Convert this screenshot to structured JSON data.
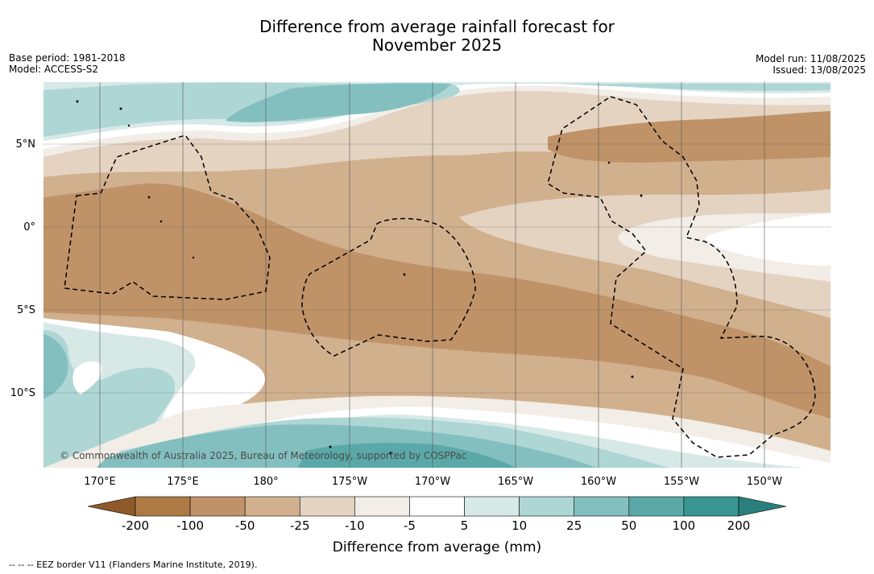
{
  "title_line1": "Difference from average rainfall forecast for",
  "title_line2": "November 2025",
  "base_period": "Base period: 1981-2018",
  "model": "Model: ACCESS-S2",
  "model_run": "Model run: 11/08/2025",
  "issued": "Issued: 13/08/2025",
  "copyright": "© Commonwealth of Australia 2025, Bureau of Meteorology, supported by COSPPac",
  "lat_labels": [
    "5°N",
    "0°",
    "5°S",
    "10°S"
  ],
  "lon_labels": [
    "170°E",
    "175°E",
    "180°",
    "175°W",
    "170°W",
    "165°W",
    "160°W",
    "155°W",
    "150°W"
  ],
  "colorbar": {
    "ticks": [
      "-200",
      "-100",
      "-50",
      "-25",
      "-10",
      "-5",
      "5",
      "10",
      "25",
      "50",
      "100",
      "200"
    ],
    "colors": [
      "#8e5a2a",
      "#ad7a44",
      "#bf9268",
      "#d1b08e",
      "#e4d3c1",
      "#f2ede6",
      "#ffffff",
      "#d6e9e7",
      "#aed6d4",
      "#84bfbf",
      "#5aa9a8",
      "#3a9692",
      "#2a7f7c"
    ],
    "label": "Difference from average (mm)"
  },
  "footnote": "--  --  -- EEZ border V11 (Flanders Marine Institute, 2019)."
}
